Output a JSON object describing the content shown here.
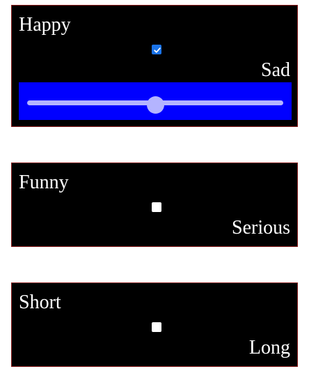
{
  "colors": {
    "card_background": "#000000",
    "card_border": "#8b1a1a",
    "text": "#ffffff",
    "slider_band": "#0000ff",
    "slider_accent": "#b4b4ff",
    "checkbox_checked": "#1a73e8"
  },
  "cards": [
    {
      "left_label": "Happy",
      "right_label": "Sad",
      "checked": true,
      "slider": {
        "value": 0.5
      }
    },
    {
      "left_label": "Funny",
      "right_label": "Serious",
      "checked": false
    },
    {
      "left_label": "Short",
      "right_label": "Long",
      "checked": false
    }
  ]
}
